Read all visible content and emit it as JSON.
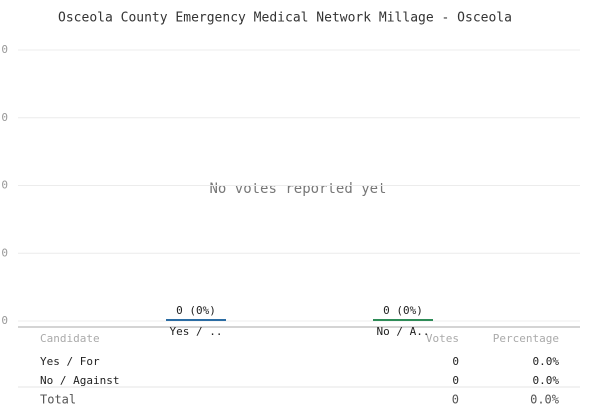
{
  "chart_data": {
    "type": "bar",
    "title": "Osceola County Emergency Medical Network Millage - Osceola",
    "annotation": "No votes reported yet",
    "categories": [
      "Yes / ..",
      "No / A.."
    ],
    "values": [
      0,
      0
    ],
    "value_labels": [
      "0 (0%)",
      "0 (0%)"
    ],
    "colors": [
      "#2b6ca3",
      "#2e8b57"
    ],
    "ylim": [
      0,
      0.4
    ],
    "yticks": [
      0,
      {
        "value": 0.1,
        "label": "0"
      },
      {
        "value": 0.2,
        "label": "0"
      },
      {
        "value": 0.3,
        "label": "0"
      },
      {
        "value": 0.4,
        "label": "0"
      }
    ],
    "grid": true
  },
  "table": {
    "columns": [
      "Candidate",
      "Votes",
      "Percentage"
    ],
    "rows": [
      [
        "Yes / For",
        0,
        "0.0%"
      ],
      [
        "No / Against",
        0,
        "0.0%"
      ]
    ],
    "total": [
      "Total",
      0,
      "0.0%"
    ]
  }
}
